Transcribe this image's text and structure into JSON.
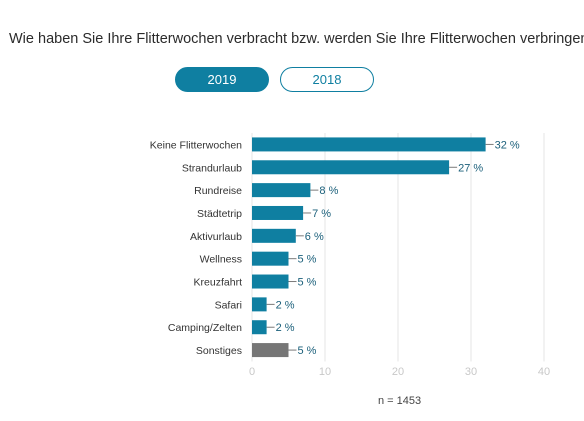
{
  "question": "Wie haben Sie Ihre Flitterwochen verbracht bzw. werden Sie Ihre Flitterwochen verbringen?",
  "tabs": [
    {
      "label": "2019",
      "active": true
    },
    {
      "label": "2018",
      "active": false
    }
  ],
  "n_label": "n = 1453",
  "colors": {
    "accent": "#0f7fa1",
    "other": "#767676",
    "grid": "#e6e6e6"
  },
  "chart_data": {
    "type": "bar",
    "orientation": "horizontal",
    "categories": [
      "Keine Flitterwochen",
      "Strandurlaub",
      "Rundreise",
      "Städtetrip",
      "Aktivurlaub",
      "Wellness",
      "Kreuzfahrt",
      "Safari",
      "Camping/Zelten",
      "Sonstiges"
    ],
    "values": [
      32,
      27,
      8,
      7,
      6,
      5,
      5,
      2,
      2,
      5
    ],
    "value_labels": [
      "32 %",
      "27 %",
      "8 %",
      "7 %",
      "6 %",
      "5 %",
      "5 %",
      "2 %",
      "2 %",
      "5 %"
    ],
    "xlim": [
      0,
      40
    ],
    "xticks": [
      0,
      10,
      20,
      30,
      40
    ],
    "grid": true
  }
}
